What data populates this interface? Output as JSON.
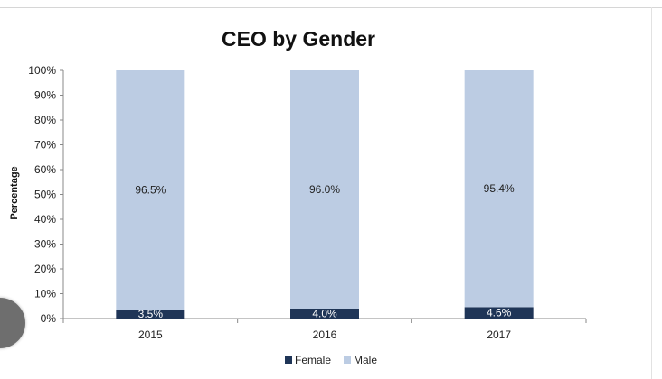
{
  "chart_data": {
    "type": "bar",
    "stacked": true,
    "title": "CEO by Gender",
    "xlabel": "",
    "ylabel": "Percentage",
    "categories": [
      "2015",
      "2016",
      "2017"
    ],
    "ylim": [
      0,
      100
    ],
    "yticks": [
      "0%",
      "10%",
      "20%",
      "30%",
      "40%",
      "50%",
      "60%",
      "70%",
      "80%",
      "90%",
      "100%"
    ],
    "series": [
      {
        "name": "Female",
        "values": [
          3.5,
          4.0,
          4.6
        ],
        "labels": [
          "3.5%",
          "4.0%",
          "4.6%"
        ],
        "color": "#1f3557"
      },
      {
        "name": "Male",
        "values": [
          96.5,
          96.0,
          95.4
        ],
        "labels": [
          "96.5%",
          "96.0%",
          "95.4%"
        ],
        "color": "#bccce3"
      }
    ],
    "legend_position": "bottom",
    "grid": false
  }
}
